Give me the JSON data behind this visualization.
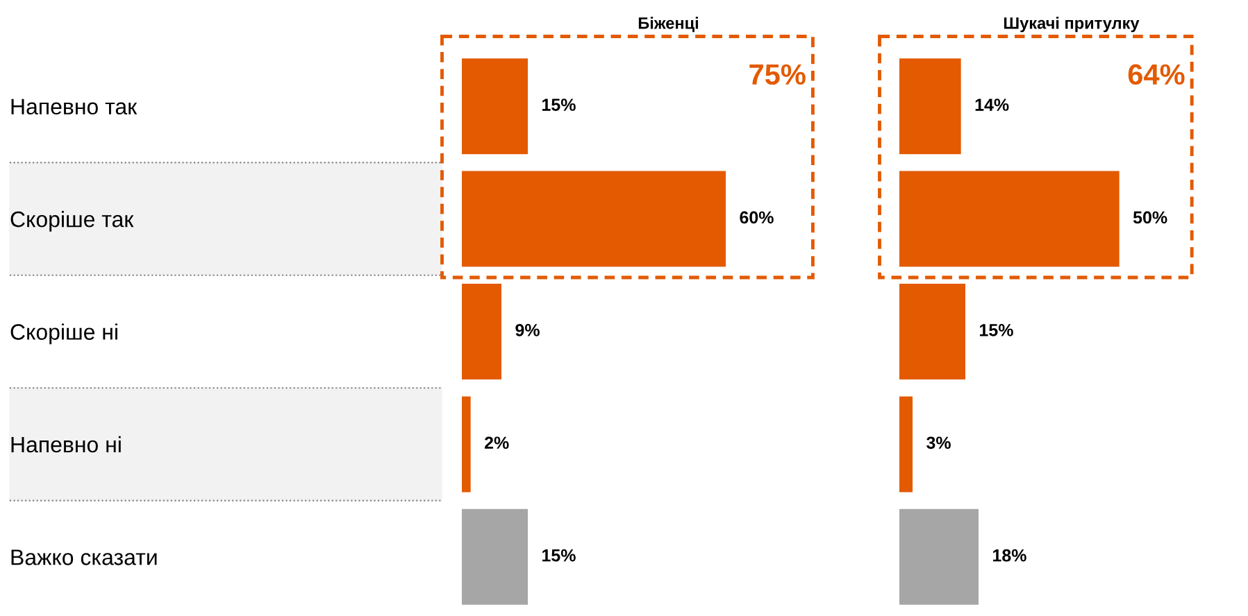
{
  "chart_data": [
    {
      "type": "bar",
      "orientation": "horizontal",
      "title": "Біженці",
      "categories": [
        "Напевно так",
        "Скоріше так",
        "Скоріше ні",
        "Напевно ні",
        "Важко сказати"
      ],
      "values": [
        15,
        60,
        9,
        2,
        15
      ],
      "colors": [
        "#e35a00",
        "#e35a00",
        "#e35a00",
        "#e35a00",
        "#a6a6a6"
      ],
      "value_labels": [
        "15%",
        "60%",
        "9%",
        "2%",
        "15%"
      ],
      "annotations": [
        "75%"
      ],
      "tick_labels": "y",
      "grid": false,
      "legend": false
    },
    {
      "type": "bar",
      "orientation": "horizontal",
      "title": "Шукачі притулку",
      "categories": [
        null,
        null,
        null,
        null,
        null
      ],
      "values": [
        14,
        50,
        15,
        3,
        18
      ],
      "colors": [
        "#e35a00",
        "#e35a00",
        "#e35a00",
        "#e35a00",
        "#a6a6a6"
      ],
      "value_labels": [
        "14%",
        "50%",
        "15%",
        "3%",
        "18%"
      ],
      "annotations": [
        "64%"
      ],
      "tick_labels": false,
      "grid": false,
      "legend": false
    }
  ]
}
